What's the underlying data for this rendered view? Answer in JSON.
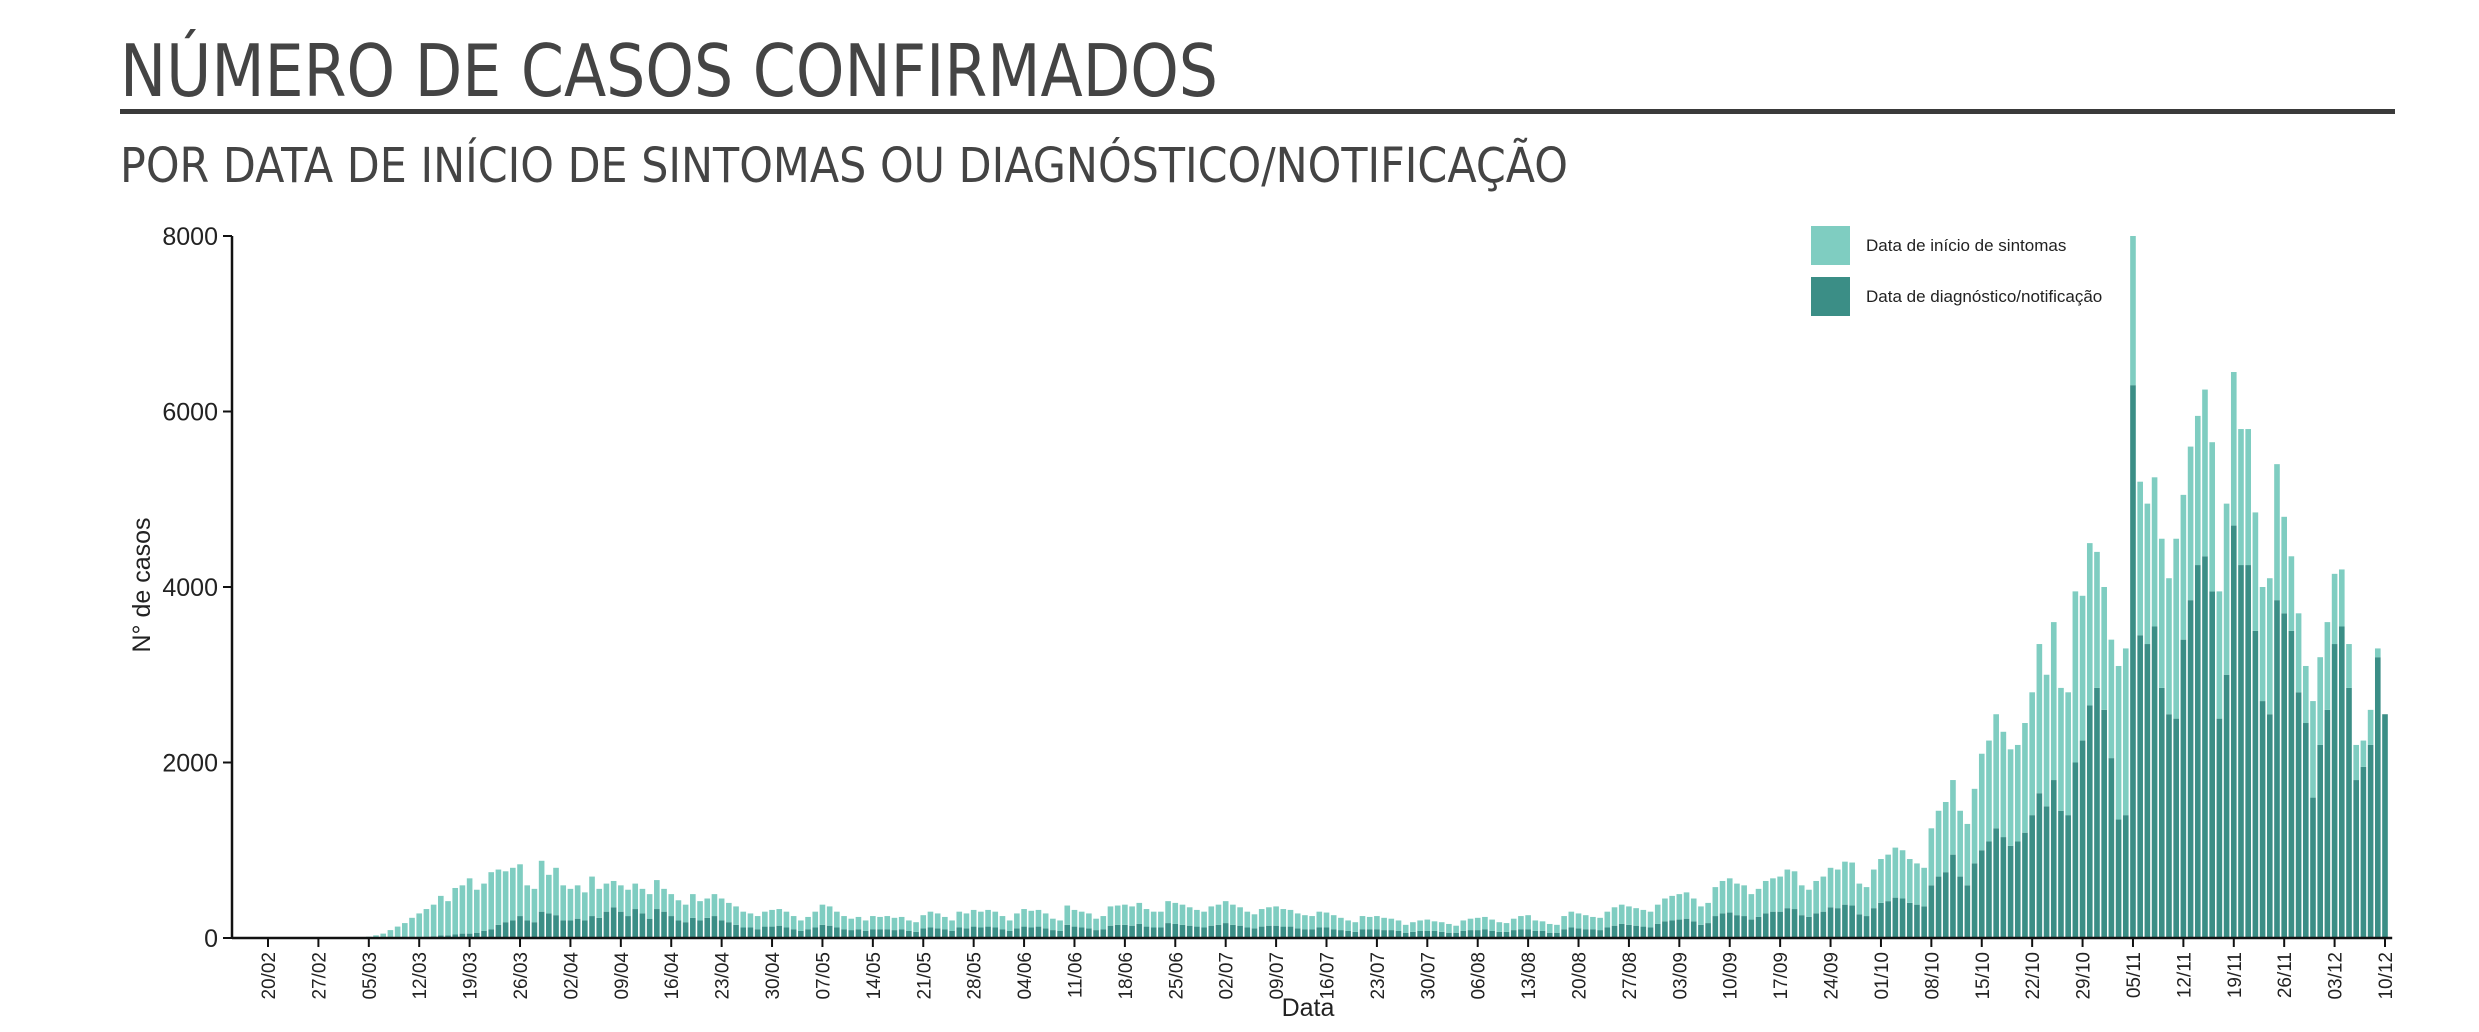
{
  "chart_data": {
    "type": "bar",
    "stacked": true,
    "title": "NÚMERO DE CASOS CONFIRMADOS",
    "subtitle": "POR DATA DE INÍCIO DE SINTOMAS OU DIAGNÓSTICO/NOTIFICAÇÃO",
    "xlabel": "Data",
    "ylabel": "N° de casos",
    "ylim": [
      0,
      8000
    ],
    "yticks": [
      0,
      2000,
      4000,
      6000,
      8000
    ],
    "categories": [
      "20/02",
      null,
      null,
      null,
      null,
      null,
      null,
      "27/02",
      null,
      null,
      null,
      null,
      null,
      null,
      "05/03",
      null,
      null,
      null,
      null,
      null,
      null,
      "12/03",
      null,
      null,
      null,
      null,
      null,
      null,
      "19/03",
      null,
      null,
      null,
      null,
      null,
      null,
      "26/03",
      null,
      null,
      null,
      null,
      null,
      null,
      "02/04",
      null,
      null,
      null,
      null,
      null,
      null,
      "09/04",
      null,
      null,
      null,
      null,
      null,
      null,
      "16/04",
      null,
      null,
      null,
      null,
      null,
      null,
      "23/04",
      null,
      null,
      null,
      null,
      null,
      null,
      "30/04",
      null,
      null,
      null,
      null,
      null,
      null,
      "07/05",
      null,
      null,
      null,
      null,
      null,
      null,
      "14/05",
      null,
      null,
      null,
      null,
      null,
      null,
      "21/05",
      null,
      null,
      null,
      null,
      null,
      null,
      "28/05",
      null,
      null,
      null,
      null,
      null,
      null,
      "04/06",
      null,
      null,
      null,
      null,
      null,
      null,
      "11/06",
      null,
      null,
      null,
      null,
      null,
      null,
      "18/06",
      null,
      null,
      null,
      null,
      null,
      null,
      "25/06",
      null,
      null,
      null,
      null,
      null,
      null,
      "02/07",
      null,
      null,
      null,
      null,
      null,
      null,
      "09/07",
      null,
      null,
      null,
      null,
      null,
      null,
      "16/07",
      null,
      null,
      null,
      null,
      null,
      null,
      "23/07",
      null,
      null,
      null,
      null,
      null,
      null,
      "30/07",
      null,
      null,
      null,
      null,
      null,
      null,
      "06/08",
      null,
      null,
      null,
      null,
      null,
      null,
      "13/08",
      null,
      null,
      null,
      null,
      null,
      null,
      "20/08",
      null,
      null,
      null,
      null,
      null,
      null,
      "27/08",
      null,
      null,
      null,
      null,
      null,
      null,
      "03/09",
      null,
      null,
      null,
      null,
      null,
      null,
      "10/09",
      null,
      null,
      null,
      null,
      null,
      null,
      "17/09",
      null,
      null,
      null,
      null,
      null,
      null,
      "24/09",
      null,
      null,
      null,
      null,
      null,
      null,
      "01/10",
      null,
      null,
      null,
      null,
      null,
      null,
      "08/10",
      null,
      null,
      null,
      null,
      null,
      null,
      "15/10",
      null,
      null,
      null,
      null,
      null,
      null,
      "22/10",
      null,
      null,
      null,
      null,
      null,
      null,
      "29/10",
      null,
      null,
      null,
      null,
      null,
      null,
      "05/11",
      null,
      null,
      null,
      null,
      null,
      null,
      "12/11",
      null,
      null,
      null,
      null,
      null,
      null,
      "19/11",
      null,
      null,
      null,
      null,
      null,
      null,
      "26/11",
      null,
      null,
      null,
      null,
      null,
      null,
      "03/12",
      null,
      null,
      null,
      null,
      null,
      null,
      "10/12"
    ],
    "series": [
      {
        "name": "Data de diagnóstico/notificação",
        "color": "#3b8e86",
        "values": [
          0,
          0,
          0,
          0,
          0,
          0,
          0,
          0,
          0,
          0,
          0,
          0,
          0,
          0,
          0,
          0,
          0,
          5,
          5,
          10,
          10,
          10,
          15,
          20,
          30,
          30,
          40,
          50,
          50,
          60,
          80,
          100,
          150,
          180,
          200,
          250,
          200,
          180,
          300,
          280,
          260,
          200,
          200,
          220,
          200,
          250,
          230,
          300,
          350,
          300,
          250,
          330,
          280,
          220,
          330,
          300,
          250,
          200,
          180,
          230,
          200,
          230,
          250,
          200,
          180,
          150,
          120,
          120,
          100,
          130,
          130,
          140,
          120,
          100,
          80,
          100,
          120,
          150,
          140,
          120,
          100,
          90,
          100,
          80,
          100,
          100,
          100,
          90,
          100,
          80,
          70,
          110,
          120,
          110,
          100,
          80,
          120,
          110,
          130,
          120,
          130,
          120,
          100,
          80,
          110,
          130,
          120,
          130,
          110,
          90,
          80,
          150,
          130,
          120,
          110,
          90,
          100,
          140,
          150,
          150,
          140,
          160,
          130,
          120,
          120,
          170,
          160,
          150,
          140,
          130,
          120,
          140,
          150,
          170,
          150,
          140,
          120,
          110,
          130,
          140,
          140,
          130,
          130,
          110,
          100,
          100,
          120,
          120,
          100,
          90,
          80,
          70,
          100,
          100,
          100,
          90,
          90,
          80,
          60,
          70,
          80,
          80,
          80,
          70,
          60,
          60,
          80,
          90,
          90,
          100,
          80,
          70,
          70,
          90,
          100,
          100,
          80,
          80,
          60,
          60,
          100,
          120,
          110,
          100,
          100,
          90,
          120,
          140,
          160,
          150,
          140,
          130,
          120,
          160,
          190,
          200,
          210,
          220,
          190,
          150,
          170,
          250,
          280,
          290,
          260,
          250,
          210,
          240,
          280,
          300,
          300,
          340,
          330,
          260,
          240,
          280,
          300,
          350,
          340,
          380,
          370,
          270,
          250,
          340,
          400,
          420,
          460,
          450,
          400,
          380,
          360,
          600,
          700,
          750,
          950,
          700,
          600,
          850,
          1000,
          1100,
          1250,
          1150,
          1050,
          1100,
          1200,
          1400,
          1650,
          1500,
          1800,
          1450,
          1400,
          2000,
          2250,
          2650,
          2850,
          2600,
          2050,
          1350,
          1400,
          6300,
          3450,
          3350,
          3550,
          2850,
          2550,
          2500,
          3400,
          3850,
          4250,
          4350,
          3950,
          2500,
          3000,
          4700,
          4250,
          4250,
          3500,
          2700,
          2550,
          3850,
          3700,
          3500,
          2800,
          2450,
          1600,
          2200,
          2600,
          3350,
          3550,
          2850,
          1800,
          1950,
          2200,
          3200,
          2550
        ]
      },
      {
        "name": "Data de início de sintomas",
        "color": "#7fcdc1",
        "values": [
          0,
          0,
          0,
          0,
          0,
          0,
          0,
          0,
          0,
          0,
          0,
          1,
          2,
          5,
          15,
          30,
          50,
          85,
          125,
          160,
          220,
          270,
          315,
          360,
          450,
          390,
          530,
          550,
          630,
          490,
          540,
          650,
          630,
          580,
          600,
          590,
          400,
          380,
          580,
          440,
          540,
          400,
          360,
          380,
          320,
          450,
          330,
          320,
          300,
          300,
          300,
          290,
          280,
          280,
          330,
          260,
          250,
          230,
          200,
          270,
          220,
          220,
          250,
          250,
          220,
          210,
          180,
          160,
          150,
          170,
          190,
          190,
          180,
          150,
          120,
          140,
          180,
          230,
          220,
          180,
          150,
          130,
          140,
          120,
          150,
          140,
          150,
          140,
          140,
          120,
          110,
          150,
          180,
          170,
          140,
          120,
          180,
          170,
          190,
          180,
          190,
          180,
          150,
          120,
          170,
          200,
          190,
          190,
          170,
          130,
          120,
          220,
          190,
          180,
          170,
          130,
          150,
          220,
          220,
          230,
          220,
          240,
          200,
          180,
          180,
          250,
          240,
          230,
          210,
          190,
          180,
          220,
          230,
          250,
          230,
          210,
          180,
          160,
          200,
          210,
          220,
          200,
          190,
          170,
          160,
          150,
          180,
          170,
          160,
          140,
          120,
          110,
          150,
          140,
          150,
          140,
          130,
          120,
          90,
          110,
          120,
          130,
          110,
          110,
          100,
          80,
          120,
          130,
          140,
          140,
          130,
          110,
          100,
          130,
          150,
          160,
          120,
          110,
          100,
          90,
          150,
          180,
          170,
          160,
          140,
          140,
          180,
          210,
          220,
          210,
          200,
          190,
          180,
          220,
          260,
          280,
          290,
          300,
          260,
          210,
          230,
          330,
          370,
          390,
          360,
          350,
          290,
          320,
          370,
          380,
          400,
          440,
          430,
          340,
          310,
          370,
          400,
          450,
          440,
          490,
          490,
          350,
          330,
          440,
          500,
          530,
          570,
          550,
          500,
          470,
          440,
          650,
          750,
          800,
          850,
          750,
          700,
          850,
          1100,
          1150,
          1300,
          1200,
          1100,
          1100,
          1250,
          1400,
          1700,
          1500,
          1800,
          1400,
          1400,
          1950,
          1650,
          1850,
          1550,
          1400,
          1350,
          1750,
          1900,
          1700,
          1750,
          1600,
          1700,
          1700,
          1550,
          2050,
          1650,
          1750,
          1700,
          1900,
          1700,
          1450,
          1950,
          1750,
          1550,
          1550,
          1350,
          1300,
          1550,
          1550,
          1100,
          850,
          900,
          650,
          1100,
          1000,
          1000,
          800,
          650,
          500,
          400,
          300,
          400,
          100,
          0
        ]
      }
    ]
  }
}
